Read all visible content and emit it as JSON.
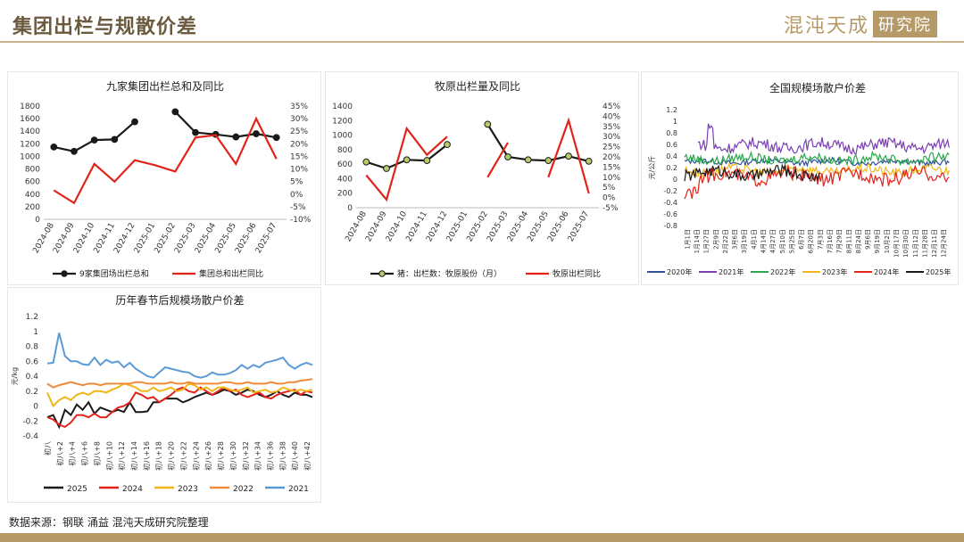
{
  "header": {
    "title": "集团出栏与规散价差"
  },
  "logo": {
    "text": "混沌天成",
    "box": "研究院"
  },
  "footer": {
    "source": "数据来源：钢联 涌益 混沌天成研究院整理"
  },
  "colors": {
    "black": "#1a1a1a",
    "red": "#e2231a",
    "accent": "#b59a68",
    "green_dot": "#b5cc6a"
  },
  "chart_data": [
    {
      "type": "line",
      "title": "九家集团出栏总和及同比",
      "categories": [
        "2024-08",
        "2024-09",
        "2024-10",
        "2024-11",
        "2024-12",
        "2025-01",
        "2025-02",
        "2025-03",
        "2025-04",
        "2025-05",
        "2025-06",
        "2025-07"
      ],
      "y_left": {
        "min": 0,
        "max": 1800,
        "ticks": [
          "0",
          "200",
          "400",
          "600",
          "800",
          "1000",
          "1200",
          "1400",
          "1600",
          "1800"
        ]
      },
      "y_right": {
        "min": -10,
        "max": 35,
        "ticks": [
          "-10%",
          "-5%",
          "0%",
          "5%",
          "10%",
          "15%",
          "20%",
          "25%",
          "30%",
          "35%"
        ]
      },
      "series": [
        {
          "name": "9家集团场出栏总和",
          "axis": "left",
          "color": "#1a1a1a",
          "markers": true,
          "values": [
            1150,
            1080,
            1260,
            1270,
            1550,
            null,
            1710,
            1380,
            1350,
            1310,
            1360,
            1300
          ]
        },
        {
          "name": "集团总和出栏同比",
          "axis": "right",
          "color": "#e2231a",
          "markers": false,
          "values": [
            1.5,
            -3.5,
            12,
            5,
            13.5,
            11.5,
            9,
            22.5,
            23.5,
            12,
            30,
            14
          ]
        }
      ]
    },
    {
      "type": "line",
      "title": "牧原出栏量及同比",
      "categories": [
        "2024-08",
        "2024-09",
        "2024-10",
        "2024-11",
        "2024-12",
        "2025-01",
        "2025-02",
        "2025-03",
        "2025-04",
        "2025-05",
        "2025-06",
        "2025-07"
      ],
      "y_left": {
        "min": 0,
        "max": 1400,
        "ticks": [
          "0",
          "200",
          "400",
          "600",
          "800",
          "1000",
          "1200",
          "1400"
        ]
      },
      "y_right": {
        "min": -5,
        "max": 45,
        "ticks": [
          "-5%",
          "0%",
          "5%",
          "10%",
          "15%",
          "20%",
          "25%",
          "30%",
          "35%",
          "40%",
          "45%"
        ]
      },
      "series": [
        {
          "name": "猪：出栏数：牧原股份（月）",
          "axis": "left",
          "color": "#1a1a1a",
          "marker_fill": "#b5cc6a",
          "markers": true,
          "values": [
            630,
            540,
            660,
            650,
            870,
            null,
            1150,
            700,
            660,
            650,
            710,
            640
          ]
        },
        {
          "name": "牧原出栏同比",
          "axis": "right",
          "color": "#e2231a",
          "markers": false,
          "values": [
            11,
            -1,
            34,
            21,
            30,
            null,
            10,
            27,
            null,
            10,
            38,
            2
          ]
        }
      ]
    },
    {
      "type": "line",
      "title": "全国规模场散户价差",
      "ylabel": "元/公斤",
      "x_tick_labels": [
        "1月1日",
        "1月14日",
        "1月27日",
        "2月9日",
        "2月22日",
        "3月6日",
        "3月19日",
        "4月1日",
        "4月14日",
        "4月27日",
        "5月10日",
        "5月25日",
        "6月7日",
        "6月20日",
        "7月3日",
        "7月16日",
        "7月29日",
        "8月11日",
        "8月24日",
        "9月6日",
        "9月19日",
        "10月2日",
        "10月17日",
        "10月30日",
        "11月12日",
        "11月28日",
        "12月11日",
        "12月24日"
      ],
      "y": {
        "min": -0.8,
        "max": 1.2,
        "ticks": [
          "-0.8",
          "-0.6",
          "-0.4",
          "-0.2",
          "0",
          "0.2",
          "0.4",
          "0.6",
          "0.8",
          "1",
          "1.2"
        ]
      },
      "series": [
        {
          "name": "2020年",
          "color": "#2e4f9b",
          "level": 0.3,
          "amp": 0.05,
          "start": 0,
          "end": 1
        },
        {
          "name": "2021年",
          "color": "#7b3fb3",
          "level": 0.58,
          "amp": 0.1,
          "start": 0.05,
          "end": 1
        },
        {
          "name": "2022年",
          "color": "#2aa84a",
          "level": 0.35,
          "amp": 0.08,
          "start": 0.0,
          "end": 1
        },
        {
          "name": "2023年",
          "color": "#f2b61a",
          "level": 0.15,
          "amp": 0.08,
          "start": 0.0,
          "end": 1
        },
        {
          "name": "2024年",
          "color": "#e2231a",
          "level": 0.05,
          "amp": 0.12,
          "start": 0.0,
          "end": 1
        },
        {
          "name": "2025年",
          "color": "#1a1a1a",
          "level": 0.1,
          "amp": 0.1,
          "start": 0.0,
          "end": 0.52
        }
      ]
    },
    {
      "type": "line",
      "title": "历年春节后规模场散户价差",
      "ylabel": "元/kg",
      "x_tick_labels": [
        "初八",
        "初八+2",
        "初八+4",
        "初八+6",
        "初八+8",
        "初八+10",
        "初八+12",
        "初八+14",
        "初八+16",
        "初八+18",
        "初八+20",
        "初八+22",
        "初八+24",
        "初八+26",
        "初八+28",
        "初八+30",
        "初八+32",
        "初八+34",
        "初八+36",
        "初八+38",
        "初八+40",
        "初八+42"
      ],
      "y": {
        "min": -0.4,
        "max": 1.2,
        "ticks": [
          "-0.4",
          "-0.2",
          "0",
          "0.2",
          "0.4",
          "0.6",
          "0.8",
          "1",
          "1.2"
        ]
      },
      "series": [
        {
          "name": "2025",
          "color": "#1a1a1a",
          "values": [
            -0.15,
            -0.12,
            -0.28,
            -0.05,
            -0.12,
            0.02,
            -0.05,
            0.05,
            -0.1,
            -0.02,
            -0.05,
            -0.08,
            -0.05,
            -0.08,
            0.05,
            -0.08,
            -0.08,
            -0.07,
            0.05,
            0.05,
            0.1,
            0.1,
            0.1,
            0.05,
            0.08,
            0.12,
            0.15,
            0.18,
            0.15,
            0.18,
            0.22,
            0.2,
            0.15,
            0.18,
            0.22,
            0.2,
            0.15,
            0.12,
            0.15,
            0.2,
            0.15,
            0.12,
            0.18,
            0.15,
            0.15,
            0.12
          ]
        },
        {
          "name": "2024",
          "color": "#e2231a",
          "values": [
            -0.15,
            -0.18,
            -0.25,
            -0.28,
            -0.22,
            -0.12,
            -0.12,
            -0.15,
            -0.1,
            -0.15,
            -0.15,
            -0.08,
            -0.02,
            0.0,
            0.05,
            0.18,
            0.15,
            0.1,
            0.12,
            0.05,
            0.1,
            0.15,
            0.22,
            0.25,
            0.2,
            0.18,
            0.25,
            0.2,
            0.15,
            0.2,
            0.25,
            0.2,
            0.22,
            0.15,
            0.12,
            0.15,
            0.18,
            0.12,
            0.1,
            0.15,
            0.18,
            0.2,
            0.22,
            0.15,
            0.2,
            0.18
          ]
        },
        {
          "name": "2023",
          "color": "#f2b61a",
          "values": [
            0.18,
            0.0,
            0.08,
            0.12,
            0.08,
            0.15,
            0.18,
            0.15,
            0.2,
            0.2,
            0.18,
            0.22,
            0.25,
            0.3,
            0.28,
            0.25,
            0.2,
            0.2,
            0.25,
            0.2,
            0.22,
            0.25,
            0.2,
            0.22,
            0.3,
            0.28,
            0.22,
            0.25,
            0.2,
            0.25,
            0.25,
            0.22,
            0.2,
            0.22,
            0.25,
            0.18,
            0.2,
            0.22,
            0.18,
            0.2,
            0.25,
            0.22,
            0.2,
            0.22,
            0.2,
            0.22
          ]
        },
        {
          "name": "2022",
          "color": "#ee8a3a",
          "values": [
            0.3,
            0.25,
            0.28,
            0.3,
            0.32,
            0.3,
            0.28,
            0.3,
            0.3,
            0.28,
            0.3,
            0.3,
            0.3,
            0.3,
            0.3,
            0.32,
            0.32,
            0.3,
            0.3,
            0.3,
            0.3,
            0.32,
            0.3,
            0.3,
            0.32,
            0.3,
            0.3,
            0.3,
            0.3,
            0.3,
            0.32,
            0.32,
            0.3,
            0.3,
            0.32,
            0.3,
            0.3,
            0.3,
            0.32,
            0.3,
            0.3,
            0.32,
            0.32,
            0.34,
            0.35,
            0.36
          ]
        },
        {
          "name": "2021",
          "color": "#5b9bd5",
          "values": [
            0.57,
            0.58,
            0.98,
            0.67,
            0.6,
            0.6,
            0.56,
            0.55,
            0.65,
            0.55,
            0.62,
            0.58,
            0.6,
            0.52,
            0.58,
            0.5,
            0.45,
            0.4,
            0.38,
            0.45,
            0.52,
            0.5,
            0.48,
            0.46,
            0.45,
            0.4,
            0.38,
            0.4,
            0.45,
            0.42,
            0.42,
            0.44,
            0.48,
            0.55,
            0.5,
            0.55,
            0.52,
            0.58,
            0.6,
            0.62,
            0.65,
            0.55,
            0.5,
            0.55,
            0.58,
            0.55
          ]
        }
      ]
    }
  ]
}
